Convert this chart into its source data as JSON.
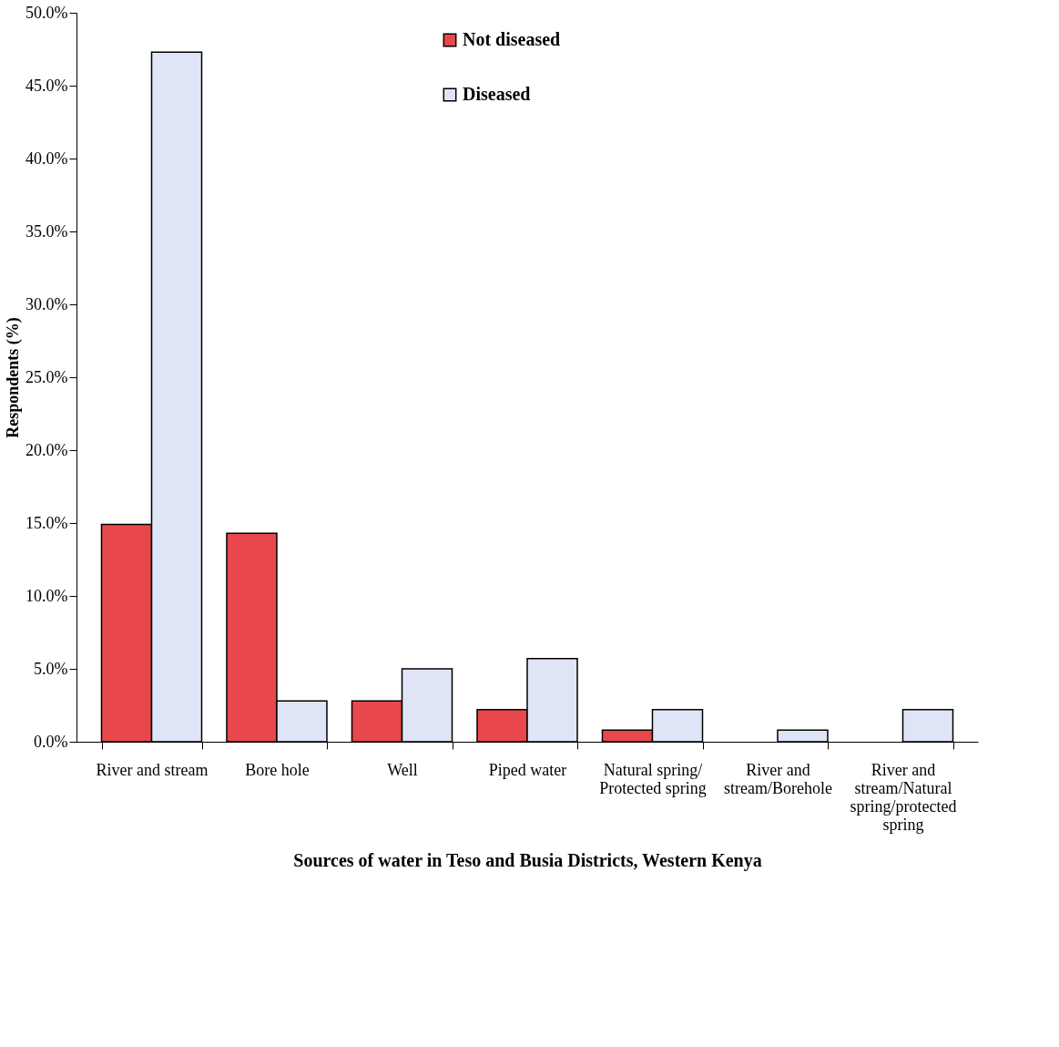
{
  "chart_data": {
    "type": "bar",
    "xlabel": "Sources of water in Teso and Busia Districts,  Western Kenya",
    "ylabel": "Respondents (%)",
    "categories": [
      "River and stream",
      "Bore hole",
      "Well",
      "Piped water",
      "Natural spring/ Protected spring",
      "River and stream/Borehole",
      "River and stream/Natural spring/protected spring"
    ],
    "series": [
      {
        "name": "Not diseased",
        "color": "#e8484c",
        "values": [
          14.9,
          14.3,
          2.8,
          2.2,
          0.8,
          null,
          null
        ]
      },
      {
        "name": "Diseased",
        "color": "#dfe5f6",
        "values": [
          47.3,
          2.8,
          5.0,
          5.7,
          2.2,
          0.8,
          2.2
        ]
      }
    ],
    "ylim": [
      0,
      50
    ],
    "yticks": [
      {
        "value": 0,
        "label": "0.0%"
      },
      {
        "value": 5,
        "label": "5.0%"
      },
      {
        "value": 10,
        "label": "10.0%"
      },
      {
        "value": 15,
        "label": "15.0%"
      },
      {
        "value": 20,
        "label": "20.0%"
      },
      {
        "value": 25,
        "label": "25.0%"
      },
      {
        "value": 30,
        "label": "30.0%"
      },
      {
        "value": 35,
        "label": "35.0%"
      },
      {
        "value": 40,
        "label": "40.0%"
      },
      {
        "value": 45,
        "label": "45.0%"
      },
      {
        "value": 50,
        "label": "50.0%"
      }
    ],
    "grid": false,
    "legend": "top"
  }
}
